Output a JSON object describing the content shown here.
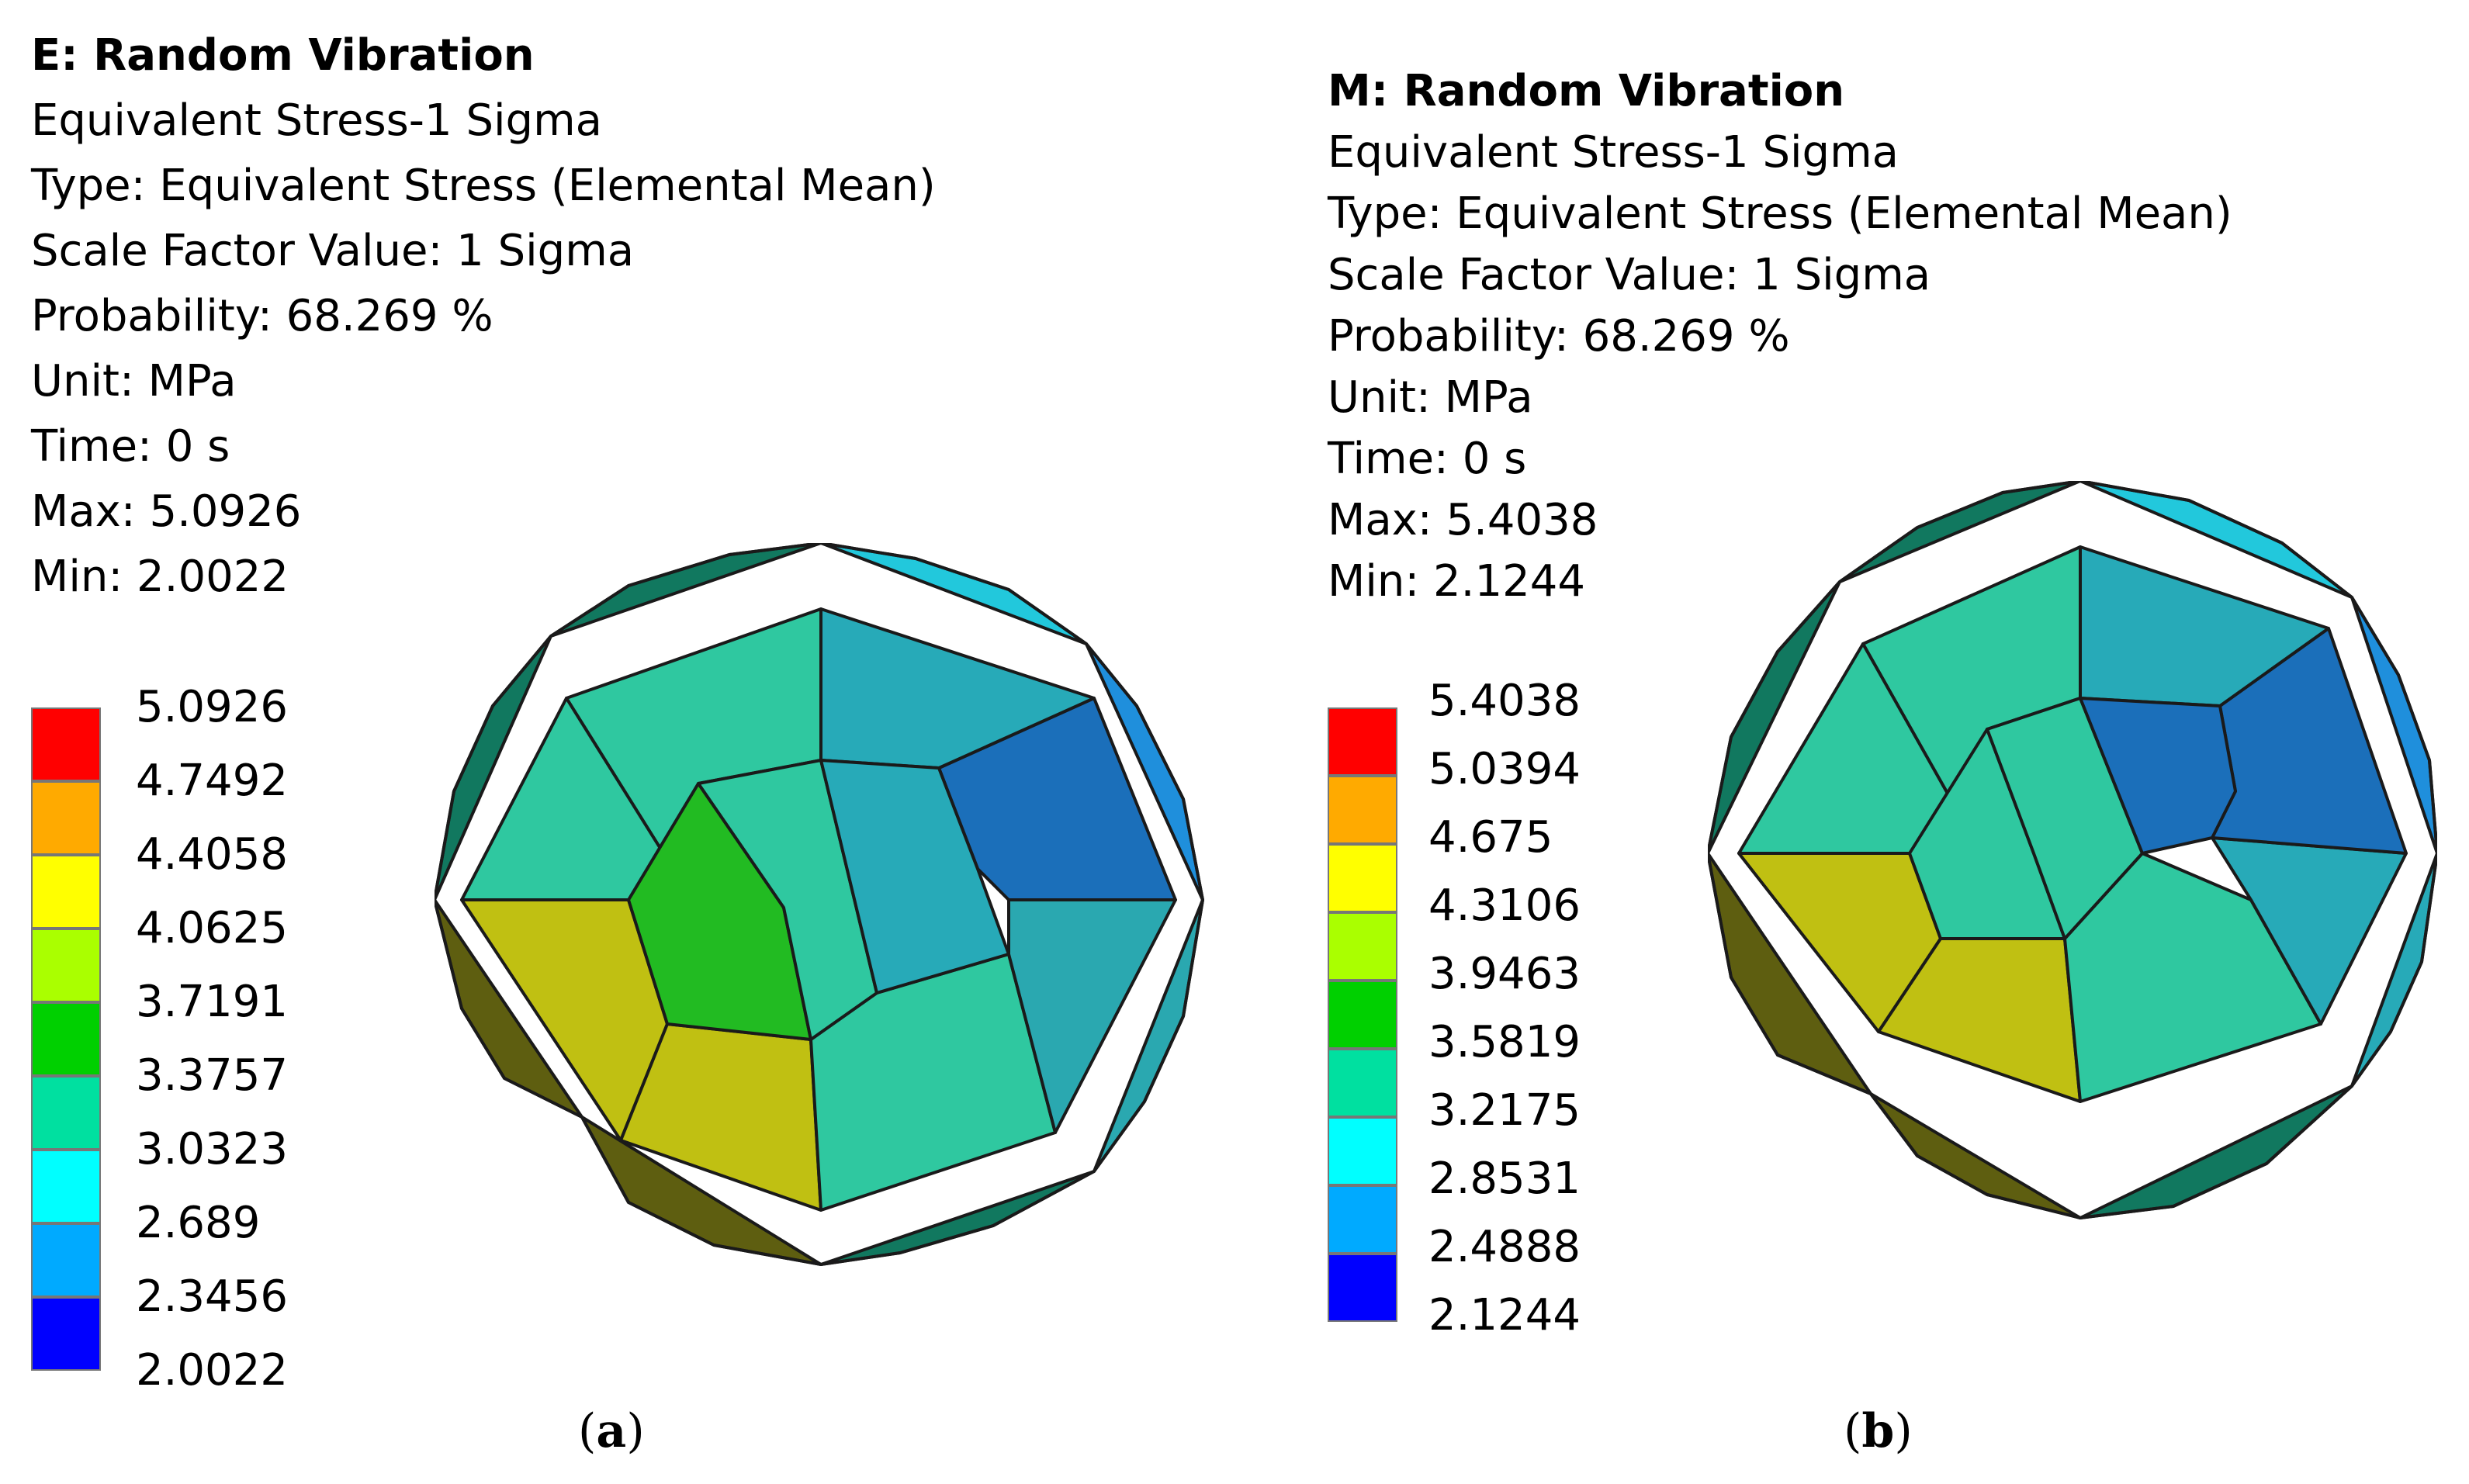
{
  "panels": [
    {
      "id": "a",
      "header": {
        "title": "E: Random Vibration",
        "lines": [
          "Equivalent Stress-1 Sigma",
          "Type: Equivalent Stress (Elemental Mean)",
          "Scale Factor Value: 1 Sigma",
          "Probability: 68.269 %",
          "Unit: MPa",
          "Time: 0 s",
          "Max: 5.0926",
          "Min: 2.0022"
        ]
      },
      "legend": {
        "values": [
          "5.0926",
          "4.7492",
          "4.4058",
          "4.0625",
          "3.7191",
          "3.3757",
          "3.0323",
          "2.689",
          "2.3456",
          "2.0022"
        ],
        "colors": [
          "#ff0000",
          "#ffaa00",
          "#ffff00",
          "#aaff00",
          "#00d000",
          "#00e0a0",
          "#00ffff",
          "#00aaff",
          "#0000ff"
        ]
      },
      "caption": {
        "open": "(",
        "letter": "a",
        "close": ")"
      }
    },
    {
      "id": "b",
      "header": {
        "title": "M: Random Vibration",
        "lines": [
          "Equivalent Stress-1 Sigma",
          "Type: Equivalent Stress (Elemental Mean)",
          "Scale Factor Value: 1 Sigma",
          "Probability: 68.269 %",
          "Unit: MPa",
          "Time: 0 s",
          "Max: 5.4038",
          "Min: 2.1244"
        ]
      },
      "legend": {
        "values": [
          "5.4038",
          "5.0394",
          "4.675",
          "4.3106",
          "3.9463",
          "3.5819",
          "3.2175",
          "2.8531",
          "2.4888",
          "2.1244"
        ],
        "colors": [
          "#ff0000",
          "#ffaa00",
          "#ffff00",
          "#aaff00",
          "#00d000",
          "#00e0a0",
          "#00ffff",
          "#00aaff",
          "#0000ff"
        ]
      },
      "caption": {
        "open": "(",
        "letter": "b",
        "close": ")"
      }
    }
  ],
  "mesh_colors": {
    "green_center": "#22bb22",
    "teal": "#2fc8a0",
    "teal_dark": "#11785f",
    "cyan": "#22c8dc",
    "cyan_mid": "#27aab8",
    "blue": "#1f8fdc",
    "blue_dark": "#1b6fba",
    "yellow": "#c0c012",
    "olive": "#5e5e10",
    "teal_side": "#2aa8b0"
  }
}
